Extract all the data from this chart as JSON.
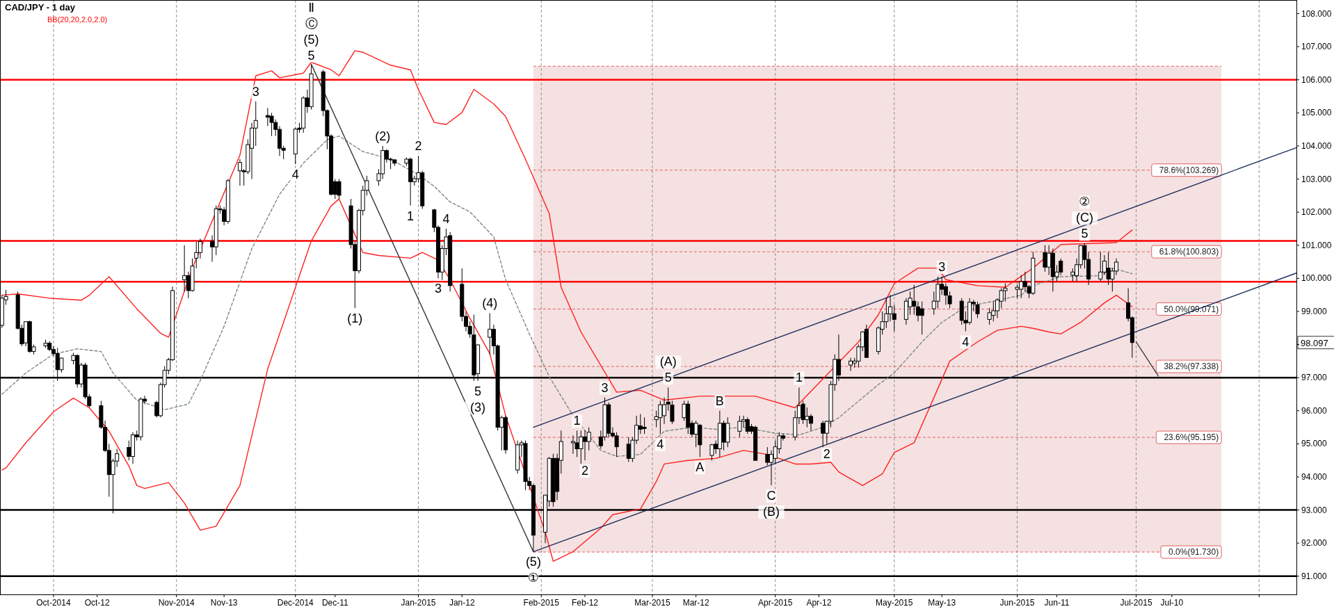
{
  "chart_data": {
    "type": "candlestick",
    "title": "CAD/JPY - 1 day",
    "subtitle": "BB(20,20,2.0,2.0)",
    "color": "#000000",
    "xlim": [
      "2014-09-17T12:00",
      "2015-08-10T10:00"
    ],
    "ylim": [
      90.45,
      108.41
    ],
    "xticks": [
      {
        "value": "2014-10-01",
        "label": "Oct-2014"
      },
      {
        "value": "2014-10-12",
        "label": "Oct-12"
      },
      {
        "value": "2014-11-01",
        "label": "Nov-2014"
      },
      {
        "value": "2014-11-13",
        "label": "Nov-13"
      },
      {
        "value": "2014-12-01",
        "label": "Dec-2014"
      },
      {
        "value": "2014-12-11",
        "label": "Dec-11"
      },
      {
        "value": "2015-01-01",
        "label": "Jan-2015"
      },
      {
        "value": "2015-01-12",
        "label": "Jan-12"
      },
      {
        "value": "2015-02-01",
        "label": "Feb-2015"
      },
      {
        "value": "2015-02-12",
        "label": "Feb-12"
      },
      {
        "value": "2015-03-01",
        "label": "Mar-2015"
      },
      {
        "value": "2015-03-12",
        "label": "Mar-12"
      },
      {
        "value": "2015-04-01",
        "label": "Apr-2015"
      },
      {
        "value": "2015-04-12",
        "label": "Apr-12"
      },
      {
        "value": "2015-05-01",
        "label": "May-2015"
      },
      {
        "value": "2015-05-13",
        "label": "May-13"
      },
      {
        "value": "2015-06-01",
        "label": "Jun-2015"
      },
      {
        "value": "2015-06-11",
        "label": "Jun-11"
      },
      {
        "value": "2015-07-01",
        "label": "Jul-2015"
      },
      {
        "value": "2015-07-10",
        "label": "Jul-10"
      },
      {
        "value": "2015-08-01",
        "label": null
      }
    ],
    "yticks": [
      {
        "value": 91,
        "label": "91.000"
      },
      {
        "value": 92,
        "label": "92.000"
      },
      {
        "value": 93,
        "label": "93.000"
      },
      {
        "value": 94,
        "label": "94.000"
      },
      {
        "value": 95,
        "label": "95.000"
      },
      {
        "value": 96,
        "label": "96.000"
      },
      {
        "value": 97,
        "label": "97.000"
      },
      {
        "value": 98,
        "label": null
      },
      {
        "value": 99,
        "label": "99.000"
      },
      {
        "value": 100,
        "label": "100.000"
      },
      {
        "value": 101,
        "label": "101.000"
      },
      {
        "value": 102,
        "label": "102.000"
      },
      {
        "value": 103,
        "label": "103.000"
      },
      {
        "value": 104,
        "label": "104.000"
      },
      {
        "value": 105,
        "label": "105.000"
      },
      {
        "value": 106,
        "label": "106.000"
      },
      {
        "value": 107,
        "label": "107.000"
      },
      {
        "value": 108,
        "label": "108.000"
      }
    ],
    "x": [
      "2014-09-18",
      "2014-09-19",
      "2014-09-22",
      "2014-09-23",
      "2014-09-24",
      "2014-09-25",
      "2014-09-26",
      "2014-09-29",
      "2014-09-30",
      "2014-10-01",
      "2014-10-02",
      "2014-10-03",
      "2014-10-06",
      "2014-10-07",
      "2014-10-08",
      "2014-10-09",
      "2014-10-10",
      "2014-10-13",
      "2014-10-14",
      "2014-10-15",
      "2014-10-16",
      "2014-10-17",
      "2014-10-20",
      "2014-10-21",
      "2014-10-22",
      "2014-10-23",
      "2014-10-24",
      "2014-10-27",
      "2014-10-28",
      "2014-10-29",
      "2014-10-30",
      "2014-10-31",
      "2014-11-03",
      "2014-11-04",
      "2014-11-05",
      "2014-11-06",
      "2014-11-07",
      "2014-11-10",
      "2014-11-11",
      "2014-11-12",
      "2014-11-13",
      "2014-11-14",
      "2014-11-17",
      "2014-11-18",
      "2014-11-19",
      "2014-11-20",
      "2014-11-21",
      "2014-11-24",
      "2014-11-25",
      "2014-11-26",
      "2014-11-27",
      "2014-11-28",
      "2014-12-01",
      "2014-12-02",
      "2014-12-03",
      "2014-12-04",
      "2014-12-05",
      "2014-12-08",
      "2014-12-09",
      "2014-12-10",
      "2014-12-11",
      "2014-12-12",
      "2014-12-15",
      "2014-12-16",
      "2014-12-17",
      "2014-12-18",
      "2014-12-19",
      "2014-12-22",
      "2014-12-23",
      "2014-12-24",
      "2014-12-25",
      "2014-12-26",
      "2014-12-29",
      "2014-12-30",
      "2014-12-31",
      "2015-01-01",
      "2015-01-02",
      "2015-01-05",
      "2015-01-06",
      "2015-01-07",
      "2015-01-08",
      "2015-01-09",
      "2015-01-12",
      "2015-01-13",
      "2015-01-14",
      "2015-01-15",
      "2015-01-16",
      "2015-01-19",
      "2015-01-20",
      "2015-01-21",
      "2015-01-22",
      "2015-01-23",
      "2015-01-26",
      "2015-01-27",
      "2015-01-28",
      "2015-01-29",
      "2015-01-30",
      "2015-02-02",
      "2015-02-03",
      "2015-02-04",
      "2015-02-05",
      "2015-02-06",
      "2015-02-09",
      "2015-02-10",
      "2015-02-11",
      "2015-02-12",
      "2015-02-13",
      "2015-02-16",
      "2015-02-17",
      "2015-02-18",
      "2015-02-19",
      "2015-02-20",
      "2015-02-23",
      "2015-02-24",
      "2015-02-25",
      "2015-02-26",
      "2015-02-27",
      "2015-03-02",
      "2015-03-03",
      "2015-03-04",
      "2015-03-05",
      "2015-03-06",
      "2015-03-09",
      "2015-03-10",
      "2015-03-11",
      "2015-03-12",
      "2015-03-13",
      "2015-03-16",
      "2015-03-17",
      "2015-03-18",
      "2015-03-19",
      "2015-03-20",
      "2015-03-23",
      "2015-03-24",
      "2015-03-25",
      "2015-03-26",
      "2015-03-27",
      "2015-03-30",
      "2015-03-31",
      "2015-04-01",
      "2015-04-02",
      "2015-04-03",
      "2015-04-06",
      "2015-04-07",
      "2015-04-08",
      "2015-04-09",
      "2015-04-10",
      "2015-04-13",
      "2015-04-14",
      "2015-04-15",
      "2015-04-16",
      "2015-04-17",
      "2015-04-20",
      "2015-04-21",
      "2015-04-22",
      "2015-04-23",
      "2015-04-24",
      "2015-04-27",
      "2015-04-28",
      "2015-04-29",
      "2015-04-30",
      "2015-05-01",
      "2015-05-04",
      "2015-05-05",
      "2015-05-06",
      "2015-05-07",
      "2015-05-08",
      "2015-05-11",
      "2015-05-12",
      "2015-05-13",
      "2015-05-14",
      "2015-05-15",
      "2015-05-18",
      "2015-05-19",
      "2015-05-20",
      "2015-05-21",
      "2015-05-22",
      "2015-05-25",
      "2015-05-26",
      "2015-05-27",
      "2015-05-28",
      "2015-05-29",
      "2015-06-01",
      "2015-06-02",
      "2015-06-03",
      "2015-06-04",
      "2015-06-05",
      "2015-06-08",
      "2015-06-09",
      "2015-06-10",
      "2015-06-11",
      "2015-06-12",
      "2015-06-15",
      "2015-06-16",
      "2015-06-17",
      "2015-06-18",
      "2015-06-19",
      "2015-06-22",
      "2015-06-23",
      "2015-06-24",
      "2015-06-25",
      "2015-06-26",
      "2015-06-29",
      "2015-06-30"
    ],
    "ohlc": [
      [
        98.58,
        99.5,
        98.5,
        99.4
      ],
      [
        99.35,
        99.65,
        99.2,
        99.45
      ],
      [
        99.5,
        99.6,
        98.45,
        98.49
      ],
      [
        98.49,
        98.6,
        97.95,
        98.02
      ],
      [
        98.05,
        98.7,
        97.95,
        98.69
      ],
      [
        98.69,
        98.72,
        97.75,
        97.79
      ],
      [
        97.79,
        98.0,
        97.7,
        97.93
      ],
      [
        97.96,
        98.15,
        97.9,
        98.04
      ],
      [
        98.04,
        98.1,
        97.8,
        97.85
      ],
      [
        97.85,
        97.95,
        97.65,
        97.73
      ],
      [
        97.73,
        97.9,
        96.9,
        97.24
      ],
      [
        97.24,
        97.6,
        97.15,
        97.59
      ],
      [
        97.52,
        97.75,
        97.4,
        97.67
      ],
      [
        97.67,
        97.7,
        96.7,
        96.81
      ],
      [
        96.81,
        97.45,
        96.7,
        97.38
      ],
      [
        97.38,
        97.45,
        96.35,
        96.42
      ],
      [
        96.42,
        96.5,
        96.1,
        96.15
      ],
      [
        96.15,
        96.3,
        95.45,
        95.5
      ],
      [
        95.5,
        95.7,
        94.75,
        94.8
      ],
      [
        94.8,
        95.0,
        93.4,
        94.07
      ],
      [
        94.07,
        94.55,
        92.9,
        94.48
      ],
      [
        94.48,
        94.85,
        94.3,
        94.7
      ],
      [
        94.89,
        95.1,
        94.5,
        94.62
      ],
      [
        94.62,
        95.35,
        94.4,
        95.27
      ],
      [
        95.27,
        95.4,
        95.1,
        95.21
      ],
      [
        95.21,
        96.4,
        95.1,
        96.35
      ],
      [
        96.35,
        96.45,
        96.2,
        96.29
      ],
      [
        96.25,
        96.3,
        95.8,
        95.85
      ],
      [
        95.85,
        96.85,
        95.8,
        96.79
      ],
      [
        96.79,
        97.35,
        96.7,
        97.22
      ],
      [
        97.22,
        97.6,
        97.1,
        97.54
      ],
      [
        97.54,
        99.75,
        97.5,
        99.63
      ],
      [
        99.96,
        101.0,
        99.6,
        100.08
      ],
      [
        100.08,
        100.2,
        99.4,
        99.63
      ],
      [
        99.63,
        100.6,
        99.6,
        100.37
      ],
      [
        100.61,
        101.1,
        100.3,
        100.78
      ],
      [
        100.78,
        101.2,
        100.6,
        101.11
      ],
      [
        101.11,
        101.3,
        100.5,
        100.95
      ],
      [
        100.95,
        102.2,
        100.7,
        102.1
      ],
      [
        102.1,
        102.2,
        101.95,
        102.07
      ],
      [
        102.07,
        102.15,
        101.6,
        101.72
      ],
      [
        101.72,
        103.0,
        101.65,
        102.95
      ],
      [
        103.25,
        103.6,
        102.8,
        103.5
      ],
      [
        103.25,
        103.3,
        102.8,
        103.22
      ],
      [
        103.22,
        104.2,
        103.15,
        104.04
      ],
      [
        103.93,
        104.7,
        103.0,
        104.54
      ],
      [
        104.54,
        105.35,
        104.0,
        104.77
      ],
      [
        104.92,
        105.15,
        104.6,
        104.87
      ],
      [
        104.9,
        105.0,
        104.3,
        104.71
      ],
      [
        104.71,
        104.8,
        104.3,
        104.5
      ],
      [
        104.5,
        104.6,
        103.7,
        103.93
      ],
      [
        103.93,
        104.0,
        103.6,
        103.87
      ],
      [
        103.76,
        104.55,
        103.45,
        104.51
      ],
      [
        104.54,
        104.7,
        104.4,
        104.5
      ],
      [
        104.54,
        105.5,
        104.4,
        105.45
      ],
      [
        105.45,
        105.7,
        105.0,
        105.19
      ],
      [
        105.19,
        106.44,
        105.1,
        106.18
      ],
      [
        106.24,
        106.3,
        104.9,
        105.07
      ],
      [
        105.07,
        105.1,
        103.9,
        104.3
      ],
      [
        104.3,
        104.35,
        102.5,
        102.54
      ],
      [
        102.92,
        103.0,
        102.4,
        102.54
      ],
      [
        102.92,
        103.0,
        102.4,
        102.51
      ],
      [
        102.19,
        102.4,
        100.9,
        101.02
      ],
      [
        101.02,
        101.1,
        99.1,
        100.23
      ],
      [
        100.23,
        102.1,
        100.15,
        102.05
      ],
      [
        102.05,
        102.8,
        101.9,
        102.66
      ],
      [
        102.66,
        103.1,
        102.5,
        102.95
      ],
      [
        102.95,
        103.3,
        102.8,
        103.16
      ],
      [
        103.16,
        104.0,
        103.0,
        103.86
      ],
      [
        103.86,
        103.9,
        103.5,
        103.6
      ],
      [
        103.6,
        103.65,
        103.3,
        103.58
      ],
      [
        103.58,
        103.6,
        103.4,
        103.48
      ],
      [
        103.48,
        103.65,
        103.4,
        103.6
      ],
      [
        103.6,
        103.65,
        102.2,
        102.92
      ],
      [
        102.92,
        103.1,
        102.8,
        103.01
      ],
      [
        103.01,
        103.7,
        102.9,
        103.19
      ],
      [
        103.19,
        103.25,
        102.1,
        102.19
      ],
      [
        102.07,
        102.1,
        101.4,
        101.54
      ],
      [
        101.54,
        101.6,
        100.0,
        100.19
      ],
      [
        100.19,
        101.0,
        99.95,
        100.9
      ],
      [
        100.9,
        101.5,
        100.7,
        101.25
      ],
      [
        101.29,
        101.4,
        99.6,
        99.78
      ],
      [
        99.82,
        100.3,
        98.7,
        98.85
      ],
      [
        98.85,
        99.0,
        98.4,
        98.55
      ],
      [
        98.55,
        98.7,
        98.2,
        98.32
      ],
      [
        98.29,
        98.9,
        96.9,
        97.08
      ],
      [
        97.12,
        98.0,
        96.9,
        97.99
      ],
      [
        98.22,
        98.95,
        97.7,
        98.46
      ],
      [
        98.46,
        98.6,
        97.7,
        97.96
      ],
      [
        97.96,
        98.0,
        95.4,
        95.5
      ],
      [
        95.5,
        95.85,
        94.8,
        95.79
      ],
      [
        95.79,
        95.85,
        94.7,
        94.82
      ],
      [
        94.21,
        95.1,
        94.1,
        94.97
      ],
      [
        94.97,
        95.1,
        94.6,
        95.03
      ],
      [
        95.01,
        95.1,
        93.6,
        93.86
      ],
      [
        93.86,
        94.0,
        93.6,
        93.74
      ],
      [
        93.74,
        93.8,
        91.75,
        92.24
      ],
      [
        92.33,
        93.45,
        92.0,
        93.45
      ],
      [
        93.27,
        94.6,
        93.1,
        94.56
      ],
      [
        94.56,
        94.7,
        93.1,
        93.25
      ],
      [
        94.56,
        94.7,
        93.3,
        93.56
      ],
      [
        94.5,
        95.4,
        94.1,
        95.07
      ],
      [
        95.03,
        95.25,
        94.7,
        95.07
      ],
      [
        95.03,
        95.4,
        94.6,
        94.85
      ],
      [
        94.85,
        95.4,
        94.4,
        95.21
      ],
      [
        95.21,
        95.4,
        94.5,
        95.07
      ],
      [
        95.07,
        95.5,
        94.8,
        95.35
      ],
      [
        95.21,
        95.4,
        94.85,
        94.94
      ],
      [
        95.21,
        96.4,
        95.1,
        96.18
      ],
      [
        96.18,
        96.25,
        95.2,
        95.32
      ],
      [
        95.32,
        95.5,
        95.2,
        95.24
      ],
      [
        95.24,
        95.35,
        94.6,
        94.91
      ],
      [
        94.99,
        95.2,
        94.45,
        94.56
      ],
      [
        94.56,
        95.2,
        94.45,
        95.11
      ],
      [
        95.11,
        95.85,
        95.0,
        95.56
      ],
      [
        95.54,
        95.9,
        95.3,
        95.44
      ],
      [
        95.5,
        95.8,
        95.3,
        95.46
      ],
      [
        95.73,
        96.0,
        95.5,
        95.82
      ],
      [
        95.79,
        96.3,
        95.3,
        96.18
      ],
      [
        95.85,
        96.4,
        95.6,
        96.18
      ],
      [
        96.26,
        96.7,
        96.0,
        96.2
      ],
      [
        96.17,
        96.3,
        95.6,
        95.68
      ],
      [
        95.79,
        96.3,
        95.7,
        96.2
      ],
      [
        96.2,
        96.3,
        95.3,
        95.5
      ],
      [
        95.62,
        95.7,
        95.2,
        95.29
      ],
      [
        95.29,
        95.7,
        94.9,
        95.62
      ],
      [
        95.56,
        95.6,
        94.6,
        94.97
      ],
      [
        94.65,
        95.0,
        94.5,
        94.97
      ],
      [
        94.99,
        95.1,
        94.7,
        94.85
      ],
      [
        94.85,
        96.0,
        94.6,
        95.62
      ],
      [
        95.62,
        95.7,
        94.8,
        95.05
      ],
      [
        95.05,
        95.8,
        94.9,
        95.62
      ],
      [
        95.38,
        95.85,
        95.2,
        95.68
      ],
      [
        95.68,
        95.85,
        95.5,
        95.73
      ],
      [
        95.73,
        95.8,
        95.3,
        95.38
      ],
      [
        95.52,
        95.6,
        95.3,
        95.38
      ],
      [
        95.5,
        95.55,
        94.5,
        94.5
      ],
      [
        94.68,
        94.9,
        94.35,
        94.44
      ],
      [
        94.44,
        94.8,
        93.75,
        94.68
      ],
      [
        94.56,
        95.1,
        94.4,
        94.91
      ],
      [
        94.85,
        95.35,
        94.7,
        95.24
      ],
      [
        95.24,
        95.3,
        95.1,
        95.17
      ],
      [
        95.21,
        96.0,
        95.1,
        95.79
      ],
      [
        95.79,
        96.7,
        95.6,
        96.15
      ],
      [
        96.2,
        96.3,
        95.6,
        95.73
      ],
      [
        95.73,
        96.1,
        95.5,
        95.83
      ],
      [
        95.83,
        95.9,
        95.4,
        95.62
      ],
      [
        95.62,
        95.7,
        94.9,
        95.32
      ],
      [
        95.32,
        95.7,
        95.0,
        95.68
      ],
      [
        95.68,
        96.9,
        95.5,
        96.79
      ],
      [
        96.79,
        97.7,
        96.6,
        97.55
      ],
      [
        97.55,
        98.3,
        96.9,
        97.08
      ],
      [
        97.38,
        97.6,
        97.2,
        97.5
      ],
      [
        97.44,
        97.6,
        97.3,
        97.5
      ],
      [
        97.5,
        98.0,
        97.3,
        97.93
      ],
      [
        97.93,
        98.4,
        97.8,
        98.38
      ],
      [
        98.46,
        98.6,
        97.6,
        97.61
      ],
      [
        97.79,
        98.55,
        97.7,
        98.5
      ],
      [
        98.46,
        99.0,
        98.3,
        98.69
      ],
      [
        98.69,
        99.4,
        98.5,
        98.93
      ],
      [
        98.93,
        99.5,
        98.7,
        99.14
      ],
      [
        98.93,
        99.2,
        98.4,
        98.76
      ],
      [
        98.76,
        99.4,
        98.6,
        99.31
      ],
      [
        99.14,
        99.6,
        98.9,
        99.4
      ],
      [
        99.31,
        99.8,
        98.9,
        99.16
      ],
      [
        99.14,
        99.3,
        98.7,
        98.88
      ],
      [
        99.08,
        99.3,
        98.3,
        98.88
      ],
      [
        99.08,
        99.6,
        98.9,
        99.31
      ],
      [
        99.31,
        100.05,
        99.1,
        99.82
      ],
      [
        99.82,
        100.05,
        99.5,
        99.67
      ],
      [
        99.75,
        99.85,
        99.2,
        99.49
      ],
      [
        99.47,
        99.6,
        99.1,
        99.23
      ],
      [
        99.31,
        99.4,
        98.6,
        98.73
      ],
      [
        98.73,
        99.0,
        98.4,
        98.65
      ],
      [
        98.67,
        99.4,
        98.6,
        99.28
      ],
      [
        99.28,
        99.35,
        99.0,
        99.23
      ],
      [
        99.2,
        99.3,
        98.8,
        98.93
      ],
      [
        98.76,
        99.1,
        98.6,
        98.96
      ],
      [
        98.88,
        99.3,
        98.7,
        99.02
      ],
      [
        99.02,
        99.4,
        98.8,
        99.35
      ],
      [
        99.31,
        99.7,
        99.1,
        99.63
      ],
      [
        99.63,
        99.85,
        99.3,
        99.7
      ],
      [
        99.67,
        99.8,
        99.4,
        99.73
      ],
      [
        99.67,
        100.1,
        99.4,
        99.9
      ],
      [
        99.9,
        100.2,
        99.6,
        99.75
      ],
      [
        99.75,
        99.8,
        99.4,
        99.55
      ],
      [
        99.55,
        100.8,
        99.5,
        100.61
      ],
      [
        100.78,
        101.0,
        100.2,
        100.34
      ],
      [
        100.34,
        101.0,
        100.1,
        100.76
      ],
      [
        100.76,
        100.9,
        99.6,
        100.05
      ],
      [
        100.05,
        100.4,
        99.9,
        100.19
      ],
      [
        100.52,
        100.6,
        100.1,
        100.19
      ],
      [
        100.1,
        100.3,
        99.9,
        100.19
      ],
      [
        100.08,
        100.6,
        99.9,
        100.41
      ],
      [
        100.41,
        101.0,
        100.3,
        100.99
      ],
      [
        100.99,
        101.05,
        100.3,
        100.57
      ],
      [
        100.57,
        100.8,
        99.8,
        99.98
      ],
      [
        99.98,
        100.8,
        99.9,
        100.19
      ],
      [
        100.19,
        100.7,
        100.1,
        100.52
      ],
      [
        100.31,
        100.8,
        99.8,
        99.98
      ],
      [
        99.98,
        100.3,
        99.6,
        100.22
      ],
      [
        100.22,
        100.6,
        100.1,
        100.49
      ],
      [
        99.26,
        99.7,
        98.7,
        98.79
      ],
      [
        98.81,
        98.85,
        97.6,
        98.06
      ]
    ],
    "series": [
      {
        "type": "line",
        "color": "#ff2020",
        "x": [
          "2014-09-18",
          "2014-09-22",
          "2014-09-30",
          "2014-10-08",
          "2014-10-10",
          "2014-10-15",
          "2014-10-22",
          "2014-10-28",
          "2014-10-30",
          "2014-10-31",
          "2014-11-05",
          "2014-11-11",
          "2014-11-17",
          "2014-11-21",
          "2014-11-25",
          "2014-11-27",
          "2014-12-03",
          "2014-12-05",
          "2014-12-10",
          "2014-12-12",
          "2014-12-16",
          "2014-12-18",
          "2014-12-25",
          "2014-12-30",
          "2015-01-01",
          "2015-01-05",
          "2015-01-08",
          "2015-01-12",
          "2015-01-15",
          "2015-01-20",
          "2015-01-23",
          "2015-01-28",
          "2015-02-03",
          "2015-02-06",
          "2015-02-11",
          "2015-02-16",
          "2015-02-20",
          "2015-02-26",
          "2015-03-04",
          "2015-03-13",
          "2015-03-27",
          "2015-04-06",
          "2015-04-16",
          "2015-04-22",
          "2015-04-27",
          "2015-05-01",
          "2015-05-07",
          "2015-05-12",
          "2015-05-14",
          "2015-05-22",
          "2015-05-29",
          "2015-06-05",
          "2015-06-12",
          "2015-06-26",
          "2015-06-30"
        ],
        "values": [
          99.49,
          99.53,
          99.4,
          99.34,
          99.49,
          100.05,
          99.08,
          98.34,
          98.22,
          null,
          100.31,
          null,
          103.72,
          106.12,
          106.27,
          106.06,
          106.2,
          106.53,
          106.3,
          106.12,
          106.88,
          106.83,
          106.44,
          106.3,
          105.71,
          104.71,
          104.65,
          105.01,
          105.71,
          105.27,
          104.89,
          103.6,
          101.96,
          99.73,
          98.38,
          null,
          96.56,
          96.62,
          96.32,
          96.44,
          96.44,
          96.09,
          null,
          98.08,
          98.9,
          99.84,
          100.31,
          100.31,
          99.96,
          99.78,
          99.73,
          100.31,
          101.02,
          101.08,
          101.46
        ]
      },
      {
        "type": "line",
        "color": "#7a8a80",
        "line_style": "dashed",
        "x": [
          "2014-09-18",
          "2014-09-24",
          "2014-10-01",
          "2014-10-07",
          "2014-10-13",
          "2014-10-16",
          "2014-10-22",
          "2014-10-29",
          "2014-11-04",
          "2014-11-07",
          "2014-11-13",
          "2014-11-20",
          "2014-11-27",
          "2014-12-03",
          "2014-12-09",
          "2014-12-12",
          "2014-12-18",
          "2014-12-25",
          "2015-01-01",
          "2015-01-05",
          "2015-01-09",
          "2015-01-14",
          "2015-01-20",
          "2015-01-23",
          "2015-01-29",
          "2015-02-03",
          "2015-02-09",
          "2015-02-16",
          "2015-02-20",
          "2015-02-26",
          "2015-03-04",
          "2015-03-11",
          "2015-03-17",
          "2015-03-24",
          "2015-04-01",
          "2015-04-07",
          "2015-04-13",
          "2015-04-17",
          "2015-04-27",
          "2015-05-01",
          "2015-05-08",
          "2015-05-13",
          "2015-05-19",
          "2015-05-26",
          "2015-06-02",
          "2015-06-05",
          "2015-06-12",
          "2015-06-22",
          "2015-06-25",
          "2015-06-30"
        ],
        "values": [
          96.5,
          97.14,
          97.71,
          97.87,
          97.79,
          97.14,
          96.32,
          96.03,
          96.2,
          96.91,
          98.55,
          100.9,
          102.54,
          103.48,
          104.19,
          104.3,
          103.83,
          103.6,
          103.13,
          102.78,
          102.31,
          102.01,
          101.25,
          99.96,
          98.32,
          97.03,
          95.85,
          94.8,
          94.62,
          94.68,
          95.38,
          95.5,
          95.44,
          95.5,
          95.32,
          95.27,
          95.5,
          95.79,
          96.79,
          97.14,
          98.08,
          98.67,
          99.14,
          99.31,
          99.49,
          99.78,
          100.05,
          100.08,
          100.31,
          100.14
        ]
      },
      {
        "type": "line",
        "color": "#ff2020",
        "x": [
          "2014-09-18",
          "2014-09-19",
          "2014-09-24",
          "2014-10-01",
          "2014-10-06",
          "2014-10-10",
          "2014-10-15",
          "2014-10-20",
          "2014-10-22",
          "2014-10-24",
          "2014-10-30",
          "2014-11-03",
          "2014-11-07",
          "2014-11-11",
          "2014-11-17",
          "2014-11-24",
          "2014-12-01",
          "2014-12-05",
          "2014-12-10",
          "2014-12-12",
          "2014-12-18",
          "2014-12-22",
          "2014-12-30",
          "2015-01-02",
          "2015-01-06",
          "2015-01-07",
          "2015-01-09",
          "2015-01-14",
          "2015-01-19",
          "2015-01-23",
          "2015-01-28",
          "2015-02-02",
          "2015-02-04",
          "2015-02-09",
          "2015-02-16",
          "2015-02-19",
          "2015-02-26",
          "2015-03-02",
          "2015-03-04",
          "2015-03-10",
          "2015-03-17",
          "2015-03-24",
          "2015-03-30",
          "2015-04-06",
          "2015-04-10",
          "2015-04-15",
          "2015-04-17",
          "2015-04-23",
          "2015-04-28",
          "2015-05-01",
          "2015-05-06",
          "2015-05-12",
          "2015-05-15",
          "2015-05-22",
          "2015-05-27",
          "2015-06-02",
          "2015-06-05",
          "2015-06-09",
          "2015-06-12",
          "2015-06-17",
          "2015-06-23",
          "2015-06-26",
          "2015-06-30"
        ],
        "values": [
          94.21,
          94.27,
          95.03,
          95.97,
          96.38,
          96.09,
          95.38,
          94.33,
          93.74,
          93.65,
          93.83,
          93.21,
          92.39,
          92.51,
          93.74,
          97.26,
          99.73,
          101.13,
          102.19,
          102.4,
          100.78,
          100.69,
          100.61,
          100.78,
          100.55,
          null,
          99.96,
          98.79,
          97.73,
          95.85,
          null,
          92.33,
          91.45,
          91.74,
          92.45,
          92.86,
          93.03,
          93.86,
          94.39,
          94.5,
          94.56,
          94.8,
          94.68,
          94.39,
          94.39,
          94.44,
          94.15,
          93.74,
          94.09,
          94.74,
          95.03,
          96.67,
          97.5,
          98.08,
          98.43,
          98.55,
          98.49,
          98.38,
          98.32,
          98.67,
          99.26,
          99.49,
          99.14
        ]
      },
      {
        "type": "line",
        "color": "#1c2f5e",
        "x": [
          "2015-01-30",
          "2015-08-10T10:00"
        ],
        "values": [
          95.5,
          103.95
        ]
      },
      {
        "type": "line",
        "color": "#1c2f5e",
        "x": [
          "2015-01-30",
          "2015-08-10T10:00"
        ],
        "values": [
          91.74,
          100.16
        ]
      },
      {
        "type": "line",
        "color": "#333333",
        "x": [
          "2014-12-05",
          "2015-01-30"
        ],
        "values": [
          106.47,
          91.74
        ]
      },
      {
        "type": "line",
        "color": "#404040",
        "x": [
          "2015-07-01",
          "2015-07-06T14:00"
        ],
        "values": [
          98.08,
          97.05
        ]
      }
    ],
    "bands": [
      {
        "axis": "x",
        "from": "2015-01-30",
        "to": "2015-07-22T12:00",
        "color": "#f5e1e1"
      }
    ],
    "ref_lines": [
      {
        "axis": "x",
        "value": "2014-10-01",
        "color": "#909090",
        "line_style": "dashed"
      },
      {
        "axis": "x",
        "value": "2014-11-01",
        "color": "#909090",
        "line_style": "dashed"
      },
      {
        "axis": "x",
        "value": "2014-12-01",
        "color": "#909090",
        "line_style": "dashed"
      },
      {
        "axis": "x",
        "value": "2015-01-01",
        "color": "#909090",
        "line_style": "dashed"
      },
      {
        "axis": "x",
        "value": "2015-02-01",
        "color": "#909090",
        "line_style": "dashed"
      },
      {
        "axis": "x",
        "value": "2015-03-01",
        "color": "#909090",
        "line_style": "dashed"
      },
      {
        "axis": "x",
        "value": "2015-04-01",
        "color": "#909090",
        "line_style": "dashed"
      },
      {
        "axis": "x",
        "value": "2015-05-01",
        "color": "#909090",
        "line_style": "dashed"
      },
      {
        "axis": "x",
        "value": "2015-06-01",
        "color": "#909090",
        "line_style": "dashed"
      },
      {
        "axis": "x",
        "value": "2015-07-01",
        "color": "#909090",
        "line_style": "dashed"
      },
      {
        "axis": "x",
        "value": "2015-08-01",
        "color": "#909090",
        "line_style": "dashed"
      },
      {
        "axis": "y",
        "value": 106.41,
        "color": "#e06060",
        "line_style": "dashed"
      },
      {
        "axis": "y",
        "value": 103.269,
        "label": "78.6%(103.269)",
        "color": "#e06060",
        "line_style": "dashed"
      },
      {
        "axis": "y",
        "value": 100.803,
        "label": "61.8%(100.803)",
        "color": "#e06060",
        "line_style": "dashed"
      },
      {
        "axis": "y",
        "value": 99.071,
        "label": "50.0%(99.071)",
        "color": "#e06060",
        "line_style": "dashed"
      },
      {
        "axis": "y",
        "value": 97.338,
        "label": "38.2%(97.338)",
        "color": "#e06060",
        "line_style": "dashed"
      },
      {
        "axis": "y",
        "value": 95.195,
        "label": "23.6%(95.195)",
        "color": "#e06060",
        "line_style": "dashed"
      },
      {
        "axis": "y",
        "value": 91.73,
        "label": "0.0%(91.730)",
        "color": "#e06060",
        "line_style": "dashed"
      },
      {
        "axis": "y",
        "value": 106,
        "color": "#ff0000",
        "line_style": "solid"
      },
      {
        "axis": "y",
        "value": 101.13,
        "color": "#ff0000",
        "line_style": "solid"
      },
      {
        "axis": "y",
        "value": 99.9,
        "color": "#ff0000",
        "line_style": "solid"
      },
      {
        "axis": "y",
        "value": 97,
        "color": "#000000",
        "line_style": "solid"
      },
      {
        "axis": "y",
        "value": 93,
        "color": "#000000",
        "line_style": "solid"
      },
      {
        "axis": "y",
        "value": 91,
        "color": "#000000",
        "line_style": "solid"
      }
    ],
    "annotations": [
      {
        "text": "Ⅱ\nⒸ\n(5)\n5",
        "x": "2014-12-05",
        "y": 106.44
      },
      {
        "text": "3",
        "x": "2014-11-21",
        "y": 105.35
      },
      {
        "text": "4",
        "x": "2014-12-01",
        "y": 103.45
      },
      {
        "text": "(2)",
        "x": "2014-12-23",
        "y": 104.0
      },
      {
        "text": "2",
        "x": "2015-01-01",
        "y": 103.7
      },
      {
        "text": "1",
        "x": "2014-12-30",
        "y": 102.2
      },
      {
        "text": "(1)",
        "x": "2014-12-16",
        "y": 99.1
      },
      {
        "text": "3",
        "x": "2015-01-06",
        "y": 100.0
      },
      {
        "text": "4",
        "x": "2015-01-08",
        "y": 101.5
      },
      {
        "text": "(4)",
        "x": "2015-01-19",
        "y": 98.95
      },
      {
        "text": "5\n(3)",
        "x": "2015-01-16",
        "y": 96.9
      },
      {
        "text": "(5)\n①",
        "x": "2015-01-30",
        "y": 91.75
      },
      {
        "text": "1",
        "x": "2015-02-10",
        "y": 95.4
      },
      {
        "text": "2",
        "x": "2015-02-12",
        "y": 94.5
      },
      {
        "text": "3",
        "x": "2015-02-17",
        "y": 96.4
      },
      {
        "text": "(A)\n5",
        "x": "2015-03-05",
        "y": 96.7
      },
      {
        "text": "4",
        "x": "2015-03-03",
        "y": 95.3
      },
      {
        "text": "B",
        "x": "2015-03-18",
        "y": 96.0
      },
      {
        "text": "A",
        "x": "2015-03-13",
        "y": 94.6
      },
      {
        "text": "C\n(B)",
        "x": "2015-03-31",
        "y": 93.75
      },
      {
        "text": "1",
        "x": "2015-04-07",
        "y": 96.7
      },
      {
        "text": "2",
        "x": "2015-04-14",
        "y": 95.0
      },
      {
        "text": "3",
        "x": "2015-05-13",
        "y": 100.05
      },
      {
        "text": "4",
        "x": "2015-05-19",
        "y": 98.4
      },
      {
        "text": "②\n(C)\n5",
        "x": "2015-06-18",
        "y": 101.05
      },
      "98.097"
    ]
  }
}
